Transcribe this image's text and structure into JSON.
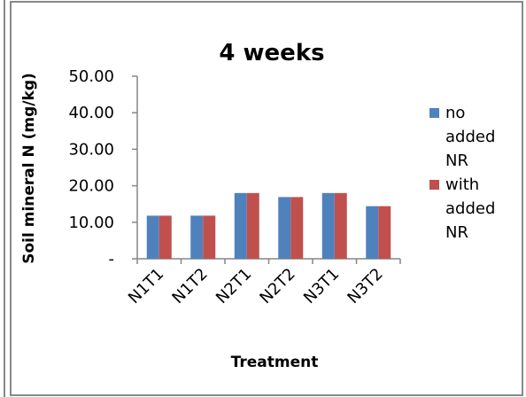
{
  "chart_data": {
    "type": "bar",
    "title": "4 weeks",
    "xlabel": "Treatment",
    "ylabel": "Soil mineral N (mg/kg)",
    "categories": [
      "N1T1",
      "N1T2",
      "N2T1",
      "N2T2",
      "N3T1",
      "N3T2"
    ],
    "series": [
      {
        "name": "no added NR",
        "color": "#4f81bd",
        "values": [
          11.8,
          11.8,
          18.0,
          16.9,
          18.0,
          14.4
        ]
      },
      {
        "name": "with added NR",
        "color": "#c0504d",
        "values": [
          11.8,
          11.8,
          18.0,
          16.9,
          18.0,
          14.4
        ]
      }
    ],
    "ylim": [
      0,
      50
    ],
    "yticks": [
      {
        "value": 0,
        "label": "-"
      },
      {
        "value": 10,
        "label": "10.00"
      },
      {
        "value": 20,
        "label": "20.00"
      },
      {
        "value": 30,
        "label": "30.00"
      },
      {
        "value": 40,
        "label": "40.00"
      },
      {
        "value": 50,
        "label": "50.00"
      }
    ],
    "grid": false,
    "legend": "right"
  }
}
